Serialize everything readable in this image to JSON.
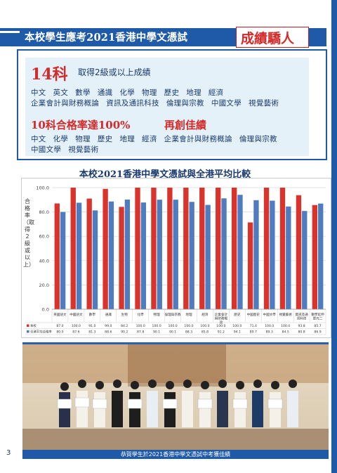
{
  "banner": {
    "title": "本校學生應考2021香港中學文憑試",
    "accent": "成績驕人"
  },
  "highlight1": {
    "number": "14科",
    "subtitle": "取得2級或以上成績",
    "subjects_line1": [
      "中文",
      "英文",
      "數學",
      "通識",
      "化學",
      "物理",
      "歷史",
      "地理",
      "經濟"
    ],
    "subjects_line2": [
      "企業會計與財務概論",
      "資訊及通訊科技",
      "倫理與宗教",
      "中國文學",
      "視覺藝術"
    ]
  },
  "highlight2": {
    "title": "10科合格率達100%",
    "title2": "再創佳績",
    "subjects_line1": [
      "中文",
      "化學",
      "物理",
      "歷史",
      "地理",
      "經濟",
      "企業會計與財務概論",
      "倫理與宗教"
    ],
    "subjects_line2": [
      "中國文學",
      "視覺藝術"
    ]
  },
  "chart_data": {
    "type": "bar",
    "title": "本校2021香港中學文憑試與全港平均比較",
    "ylabel": "合格率（取得2級或以上）",
    "ylim": [
      0,
      100
    ],
    "yticks": [
      "0.0",
      "20.0",
      "40.0",
      "60.0",
      "80.0",
      "100.0"
    ],
    "categories": [
      "英國語文",
      "中國語文",
      "數學",
      "通識",
      "生物",
      "化學",
      "物理",
      "倫理與宗教",
      "地理",
      "經濟",
      "企業會計與財務概論",
      "歷史",
      "中國歷史",
      "中國文學",
      "視覺藝術",
      "資訊及通訊科技",
      "數學延伸單元二"
    ],
    "series": [
      {
        "name": "本校",
        "color": "#d9332b",
        "values": [
          87.0,
          100.0,
          91.0,
          99.0,
          84.2,
          100.0,
          100.0,
          100.0,
          100.0,
          100.0,
          100.0,
          100.0,
          71.4,
          100.0,
          100.0,
          93.8,
          85.7
        ]
      },
      {
        "name": "全港平均合格率",
        "color": "#4f7cbf",
        "values": [
          80.0,
          87.6,
          81.3,
          88.6,
          90.2,
          87.8,
          90.1,
          90.1,
          88.3,
          85.8,
          91.2,
          94.1,
          89.7,
          89.3,
          84.5,
          80.8,
          86.9
        ]
      }
    ],
    "table_rows": [
      {
        "label": "本校",
        "values": [
          "87.0",
          "100.0",
          "91.0",
          "99.0",
          "84.2",
          "100.0",
          "100.0",
          "100.0",
          "100.0",
          "100.0",
          "100.0",
          "100.0",
          "71.4",
          "100.0",
          "100.0",
          "93.8",
          "85.7"
        ]
      },
      {
        "label": "全港平均合格率",
        "values": [
          "80.0",
          "87.6",
          "81.3",
          "88.6",
          "90.2",
          "87.8",
          "90.1",
          "90.1",
          "88.3",
          "85.8",
          "91.2",
          "94.1",
          "89.7",
          "89.3",
          "84.5",
          "80.8",
          "86.9"
        ]
      }
    ]
  },
  "photo": {
    "caption": "恭賀學生於2021香港中學文憑試中考獲佳績"
  },
  "page_number": "3"
}
